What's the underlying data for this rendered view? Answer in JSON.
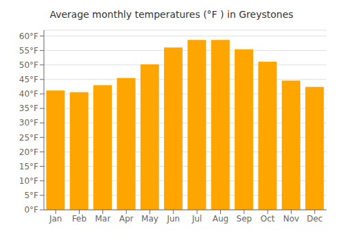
{
  "chart_data": {
    "type": "bar",
    "title": "Average monthly temperatures (°F ) in Greystones",
    "categories": [
      "Jan",
      "Feb",
      "Mar",
      "Apr",
      "May",
      "Jun",
      "Jul",
      "Aug",
      "Sep",
      "Oct",
      "Nov",
      "Dec"
    ],
    "values": [
      41.2,
      40.6,
      43.0,
      45.5,
      50.2,
      56.0,
      58.6,
      58.6,
      55.4,
      51.1,
      44.6,
      42.4
    ],
    "color": "#FFA500",
    "ylim": [
      0,
      62
    ],
    "yticks": [
      {
        "value": 0,
        "label": "0°F"
      },
      {
        "value": 5,
        "label": "5°F"
      },
      {
        "value": 10,
        "label": "10°F"
      },
      {
        "value": 15,
        "label": "15°F"
      },
      {
        "value": 20,
        "label": "20°F"
      },
      {
        "value": 25,
        "label": "25°F"
      },
      {
        "value": 30,
        "label": "30°F"
      },
      {
        "value": 35,
        "label": "35°F"
      },
      {
        "value": 40,
        "label": "40°F"
      },
      {
        "value": 45,
        "label": "45°F"
      },
      {
        "value": 50,
        "label": "50°F"
      },
      {
        "value": 55,
        "label": "55°F"
      },
      {
        "value": 60,
        "label": "60°F"
      }
    ],
    "grid": true
  }
}
